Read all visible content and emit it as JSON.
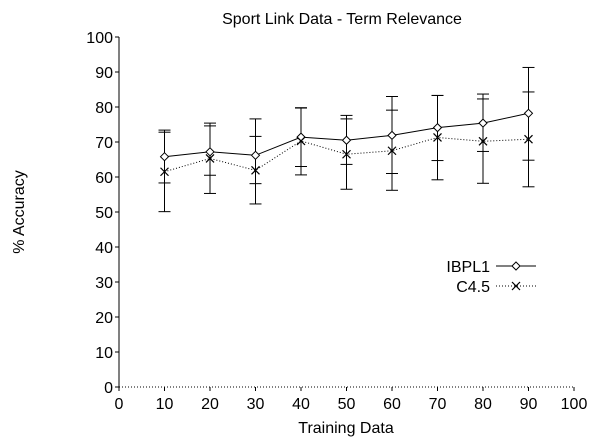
{
  "chart_data": {
    "type": "line",
    "title": "Sport Link Data - Term Relevance",
    "xlabel": "Training Data",
    "ylabel": "% Accuracy",
    "xlim": [
      0,
      100
    ],
    "ylim": [
      0,
      100
    ],
    "x_ticks": [
      0,
      10,
      20,
      30,
      40,
      50,
      60,
      70,
      80,
      90,
      100
    ],
    "y_ticks": [
      0,
      10,
      20,
      30,
      40,
      50,
      60,
      70,
      80,
      90,
      100
    ],
    "grid": false,
    "legend_position": "middle-right",
    "x": [
      10,
      20,
      30,
      40,
      50,
      60,
      70,
      80,
      90
    ],
    "series": [
      {
        "name": "IBPL1",
        "marker": "diamond",
        "line_style": "solid",
        "color": "#000000",
        "values": [
          65.8,
          67.2,
          66.2,
          71.4,
          70.5,
          71.9,
          74.1,
          75.4,
          78.2
        ],
        "error_low": [
          58.3,
          60.5,
          58.1,
          63.0,
          63.6,
          61.0,
          64.7,
          67.3,
          64.8
        ],
        "error_high": [
          73.4,
          75.4,
          76.6,
          79.7,
          77.6,
          83.0,
          83.3,
          83.7,
          91.3
        ]
      },
      {
        "name": "C4.5",
        "marker": "x",
        "line_style": "dotted",
        "color": "#000000",
        "values": [
          61.5,
          65.3,
          61.9,
          70.3,
          66.5,
          67.5,
          71.3,
          70.2,
          70.8
        ],
        "error_low": [
          50.1,
          55.3,
          52.3,
          60.6,
          56.5,
          56.2,
          59.2,
          58.2,
          57.2
        ],
        "error_high": [
          72.8,
          74.6,
          71.6,
          79.8,
          76.6,
          79.1,
          83.3,
          82.3,
          84.3
        ]
      }
    ]
  }
}
